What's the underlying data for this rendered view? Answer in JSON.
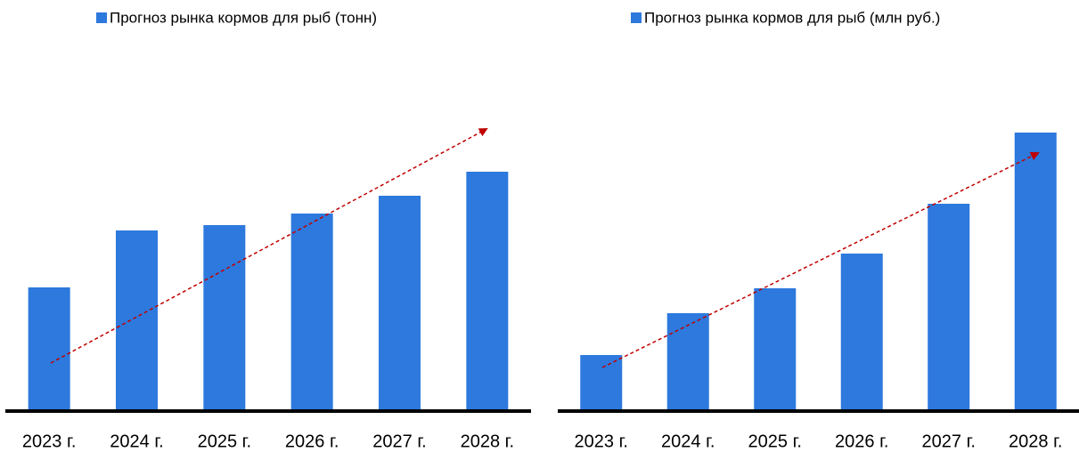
{
  "chart_data": [
    {
      "type": "bar",
      "categories": [
        "2023 г.",
        "2024 г.",
        "2025 г.",
        "2026 г.",
        "2027 г.",
        "2028 г."
      ],
      "series": [
        {
          "name": "Прогноз рынка кормов для рыб (тонн)",
          "color": "#2d79dd",
          "values": [
            137,
            201,
            207,
            220,
            240,
            267
          ]
        }
      ],
      "ylim": [
        0,
        320
      ]
    },
    {
      "type": "bar",
      "categories": [
        "2023 г.",
        "2024 г.",
        "2025 г.",
        "2026 г.",
        "2027 г.",
        "2028 г."
      ],
      "series": [
        {
          "name": "Прогноз рынка кормов для рыб (млн руб.)",
          "color": "#2d79dd",
          "values": [
            61,
            108,
            136,
            175,
            231,
            311
          ]
        }
      ],
      "ylim": [
        0,
        320
      ]
    }
  ]
}
